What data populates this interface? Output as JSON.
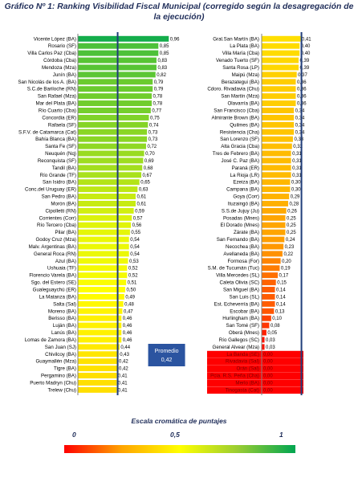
{
  "title": "Gráfico Nº 1: Ranking Visibilidad Fiscal Municipal (corregido según la desagregación de la ejecución)",
  "scale": {
    "title": "Escala cromática de puntajes",
    "min_label": "0",
    "mid_label": "0,5",
    "max_label": "1"
  },
  "colors": {
    "gradient_low": "#ff0000",
    "gradient_mid": "#ffff00",
    "gradient_high": "#00a651",
    "average_line": "#1f3d7a",
    "average_box": "#2b54a0",
    "title_text": "#1f2d59"
  },
  "chart_data": [
    {
      "type": "bar",
      "orientation": "horizontal",
      "title": "",
      "xlim": [
        0,
        1
      ],
      "average": {
        "label": "Promedio",
        "value": 0.42,
        "value_label": "0,42"
      },
      "categories": [
        "Vicente López (BA)",
        "Rosario (SF)",
        "Villa Carlos Paz (Cba)",
        "Córdoba (Cba)",
        "Mendoza (Mza)",
        "Junín (BA)",
        "San Nicolás de los A. (BA)",
        "S.C.de Bariloche (RN)",
        "San Rafael (Mza)",
        "Mar del Plata (BA)",
        "Río Cuarto (Cba)",
        "Concordia (ER)",
        "Rafaela (SF)",
        "S.F.V. de Catamarca (Cat)",
        "Bahía Blanca (BA)",
        "Santa Fe (SF)",
        "Neuquén (Nq)",
        "Reconquista (SF)",
        "Tandil (BA)",
        "Río Grande (TF)",
        "San Isidro (BA)",
        "Conc.del Uruguay (ER)",
        "San Pedro (BA)",
        "Morón (BA)",
        "Cipolletti (RN)",
        "Corrientes (Corr)",
        "Río Tercero (Cba)",
        "Pilar (BA)",
        "Godoy Cruz (Mza)",
        "Malv. Argentinas (BA)",
        "General Roca (RN)",
        "Azul (BA)",
        "Ushuaia (TF)",
        "Florencio Varela (BA)",
        "Sgo. del Estero (SE)",
        "Gualeguaychú (ER)",
        "La Matanza (BA)",
        "Salta (Sal)",
        "Moreno (BA)",
        "Berisso (BA)",
        "Luján (BA)",
        "Lanús (BA)",
        "Lomas de Zamora (BA)",
        "San Juan (SJ)",
        "Chivilcoy (BA)",
        "Guaymallén (Mza)",
        "Tigre (BA)",
        "Pergamino (BA)",
        "Puerto Madryn (Chu)",
        "Trelew (Chu)"
      ],
      "values": [
        0.96,
        0.85,
        0.85,
        0.83,
        0.83,
        0.82,
        0.79,
        0.79,
        0.78,
        0.78,
        0.77,
        0.75,
        0.74,
        0.73,
        0.73,
        0.72,
        0.7,
        0.69,
        0.68,
        0.67,
        0.65,
        0.63,
        0.61,
        0.61,
        0.59,
        0.57,
        0.56,
        0.55,
        0.54,
        0.54,
        0.54,
        0.53,
        0.52,
        0.52,
        0.51,
        0.5,
        0.49,
        0.48,
        0.47,
        0.46,
        0.46,
        0.46,
        0.46,
        0.44,
        0.43,
        0.42,
        0.42,
        0.41,
        0.41,
        0.41
      ],
      "value_labels": [
        "0,96",
        "0,85",
        "0,85",
        "0,83",
        "0,83",
        "0,82",
        "0,79",
        "0,79",
        "0,78",
        "0,78",
        "0,77",
        "0,75",
        "0,74",
        "0,73",
        "0,73",
        "0,72",
        "0,70",
        "0,69",
        "0,68",
        "0,67",
        "0,65",
        "0,63",
        "0,61",
        "0,61",
        "0,59",
        "0,57",
        "0,56",
        "0,55",
        "0,54",
        "0,54",
        "0,54",
        "0,53",
        "0,52",
        "0,52",
        "0,51",
        "0,50",
        "0,49",
        "0,48",
        "0,47",
        "0,46",
        "0,46",
        "0,46",
        "0,46",
        "0,44",
        "0,43",
        "0,42",
        "0,42",
        "0,41",
        "0,41",
        "0,41"
      ]
    },
    {
      "type": "bar",
      "orientation": "horizontal",
      "title": "",
      "xlim": [
        0,
        1
      ],
      "average": {
        "label": "Promedio",
        "value": 0.42,
        "value_label": "0,42"
      },
      "categories": [
        "Gral.San Martín (BA)",
        "La Plata (BA)",
        "Villa María (Cba)",
        "Venado Tuerto (SF)",
        "Santa Rosa (LP)",
        "Maipú (Mza)",
        "Berazategui (BA)",
        "Cdoro. Rivadavia (Chu)",
        "San Martín (Mza)",
        "Olavarría (BA)",
        "San Francisco (Cba)",
        "Almirante Brown (BA)",
        "Quilmes (BA)",
        "Resistencia (Cha)",
        "San Lorenzo (SF)",
        "Alta Gracia (Cba)",
        "Tres de Febrero (BA)",
        "José C. Paz (BA)",
        "Paraná (ER)",
        "La Rioja (LR)",
        "Ezeiza (BA)",
        "Campana (BA)",
        "Goya (Corr)",
        "Ituzaingó (BA)",
        "S.S.de Jujuy (Ju)",
        "Posadas (Mnes)",
        "El Dorado (Mnes)",
        "Zárate (BA)",
        "San Fernando (BA)",
        "Necochea (BA)",
        "Avellaneda (BA)",
        "Formosa (For)",
        "S.M. de Tucumán (Tuc)",
        "Villa Mercedes (SL)",
        "Caleta Olivia (SC)",
        "San Miguel (BA)",
        "San Luis (SL)",
        "Est. Echeverría (BA)",
        "Escobar (BA)",
        "Hurlingham (BA)",
        "San Tomé (SF)",
        "Oberá (Mnes)",
        "Río Gallegos (SC)",
        "General Alvear (Mza)",
        "La Banda (SE)",
        "Rivadavia (Sal)",
        "Orán (Sal)",
        "Pcia. R.S. Peña (Cha)",
        "Merlo (BA)",
        "Tinogasta (Cat)"
      ],
      "values": [
        0.41,
        0.4,
        0.4,
        0.39,
        0.39,
        0.37,
        0.36,
        0.36,
        0.36,
        0.36,
        0.34,
        0.34,
        0.34,
        0.34,
        0.33,
        0.32,
        0.31,
        0.31,
        0.31,
        0.31,
        0.3,
        0.3,
        0.29,
        0.28,
        0.26,
        0.25,
        0.25,
        0.25,
        0.24,
        0.23,
        0.22,
        0.2,
        0.19,
        0.17,
        0.15,
        0.14,
        0.14,
        0.14,
        0.13,
        0.1,
        0.08,
        0.05,
        0.03,
        0.03,
        0.0,
        0.0,
        0.0,
        0.0,
        0.0,
        0.0
      ],
      "value_labels": [
        "0,41",
        "0,40",
        "0,40",
        "0,39",
        "0,39",
        "0,37",
        "0,36",
        "0,36",
        "0,36",
        "0,36",
        "0,34",
        "0,34",
        "0,34",
        "0,34",
        "0,33",
        "0,32",
        "0,31",
        "0,31",
        "0,31",
        "0,31",
        "0,30",
        "0,30",
        "0,29",
        "0,28",
        "0,26",
        "0,25",
        "0,25",
        "0,25",
        "0,24",
        "0,23",
        "0,22",
        "0,20",
        "0,19",
        "0,17",
        "0,15",
        "0,14",
        "0,14",
        "0,14",
        "0,13",
        "0,10",
        "0,08",
        "0,05",
        "0,03",
        "0,03",
        "0,00",
        "0,00",
        "0,00",
        "0,00",
        "0,00",
        "0,00"
      ]
    }
  ]
}
